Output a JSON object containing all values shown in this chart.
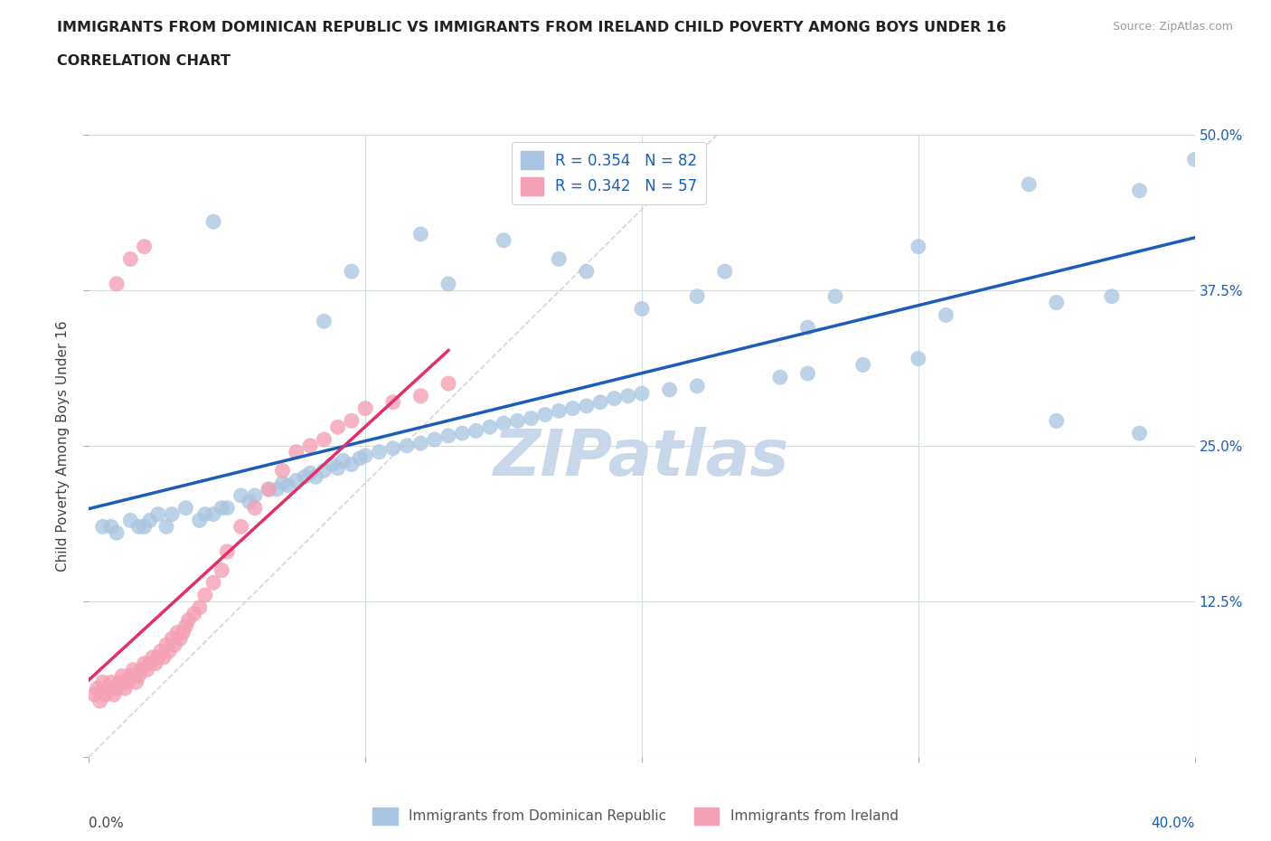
{
  "title": "IMMIGRANTS FROM DOMINICAN REPUBLIC VS IMMIGRANTS FROM IRELAND CHILD POVERTY AMONG BOYS UNDER 16",
  "subtitle": "CORRELATION CHART",
  "source": "Source: ZipAtlas.com",
  "ylabel": "Child Poverty Among Boys Under 16",
  "legend_label_blue": "Immigrants from Dominican Republic",
  "legend_label_pink": "Immigrants from Ireland",
  "R_blue": 0.354,
  "N_blue": 82,
  "R_pink": 0.342,
  "N_pink": 57,
  "color_blue": "#a8c4e0",
  "color_pink": "#f4a0b5",
  "line_color_blue": "#1a5eb8",
  "line_color_pink": "#e0306a",
  "xlim": [
    0.0,
    0.4
  ],
  "ylim": [
    0.0,
    0.5
  ],
  "xticks": [
    0.0,
    0.1,
    0.2,
    0.3,
    0.4
  ],
  "yticks": [
    0.0,
    0.125,
    0.25,
    0.375,
    0.5
  ],
  "watermark": "ZIPatlas",
  "watermark_color": "#c8d8ea",
  "background_color": "#ffffff",
  "grid_color": "#d0dce8",
  "diagonal_line_color": "#cccccc",
  "blue_x": [
    0.005,
    0.008,
    0.01,
    0.015,
    0.018,
    0.02,
    0.022,
    0.025,
    0.028,
    0.03,
    0.035,
    0.04,
    0.042,
    0.045,
    0.048,
    0.05,
    0.055,
    0.058,
    0.06,
    0.065,
    0.068,
    0.07,
    0.072,
    0.075,
    0.078,
    0.08,
    0.082,
    0.085,
    0.088,
    0.09,
    0.092,
    0.095,
    0.098,
    0.1,
    0.105,
    0.11,
    0.115,
    0.12,
    0.125,
    0.13,
    0.135,
    0.14,
    0.145,
    0.15,
    0.155,
    0.16,
    0.165,
    0.17,
    0.175,
    0.18,
    0.185,
    0.19,
    0.195,
    0.2,
    0.21,
    0.22,
    0.25,
    0.26,
    0.28,
    0.3,
    0.12,
    0.15,
    0.17,
    0.2,
    0.23,
    0.27,
    0.3,
    0.34,
    0.38,
    0.4,
    0.085,
    0.13,
    0.18,
    0.22,
    0.26,
    0.31,
    0.35,
    0.37,
    0.045,
    0.095,
    0.35,
    0.38
  ],
  "blue_y": [
    0.185,
    0.185,
    0.18,
    0.19,
    0.185,
    0.185,
    0.19,
    0.195,
    0.185,
    0.195,
    0.2,
    0.19,
    0.195,
    0.195,
    0.2,
    0.2,
    0.21,
    0.205,
    0.21,
    0.215,
    0.215,
    0.22,
    0.218,
    0.222,
    0.225,
    0.228,
    0.225,
    0.23,
    0.235,
    0.232,
    0.238,
    0.235,
    0.24,
    0.242,
    0.245,
    0.248,
    0.25,
    0.252,
    0.255,
    0.258,
    0.26,
    0.262,
    0.265,
    0.268,
    0.27,
    0.272,
    0.275,
    0.278,
    0.28,
    0.282,
    0.285,
    0.288,
    0.29,
    0.292,
    0.295,
    0.298,
    0.305,
    0.308,
    0.315,
    0.32,
    0.42,
    0.415,
    0.4,
    0.36,
    0.39,
    0.37,
    0.41,
    0.46,
    0.455,
    0.48,
    0.35,
    0.38,
    0.39,
    0.37,
    0.345,
    0.355,
    0.365,
    0.37,
    0.43,
    0.39,
    0.27,
    0.26
  ],
  "pink_x": [
    0.002,
    0.003,
    0.004,
    0.005,
    0.006,
    0.007,
    0.008,
    0.009,
    0.01,
    0.011,
    0.012,
    0.013,
    0.014,
    0.015,
    0.016,
    0.017,
    0.018,
    0.019,
    0.02,
    0.021,
    0.022,
    0.023,
    0.024,
    0.025,
    0.026,
    0.027,
    0.028,
    0.029,
    0.03,
    0.031,
    0.032,
    0.033,
    0.034,
    0.035,
    0.036,
    0.038,
    0.04,
    0.042,
    0.045,
    0.048,
    0.05,
    0.055,
    0.06,
    0.065,
    0.07,
    0.075,
    0.08,
    0.085,
    0.09,
    0.095,
    0.1,
    0.11,
    0.12,
    0.13,
    0.01,
    0.015,
    0.02
  ],
  "pink_y": [
    0.05,
    0.055,
    0.045,
    0.06,
    0.05,
    0.055,
    0.06,
    0.05,
    0.055,
    0.06,
    0.065,
    0.055,
    0.06,
    0.065,
    0.07,
    0.06,
    0.065,
    0.07,
    0.075,
    0.07,
    0.075,
    0.08,
    0.075,
    0.08,
    0.085,
    0.08,
    0.09,
    0.085,
    0.095,
    0.09,
    0.1,
    0.095,
    0.1,
    0.105,
    0.11,
    0.115,
    0.12,
    0.13,
    0.14,
    0.15,
    0.165,
    0.185,
    0.2,
    0.215,
    0.23,
    0.245,
    0.25,
    0.255,
    0.265,
    0.27,
    0.28,
    0.285,
    0.29,
    0.3,
    0.38,
    0.4,
    0.41
  ]
}
